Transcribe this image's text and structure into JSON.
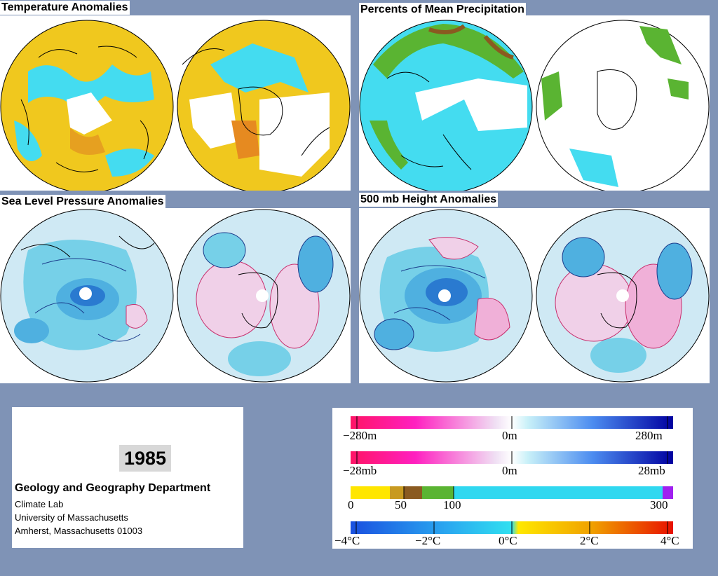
{
  "panels": {
    "temperature": {
      "title": "Temperature Anomalies"
    },
    "precipitation": {
      "title": "Percents of Mean Precipitation"
    },
    "slp": {
      "title": "Sea Level Pressure Anomalies"
    },
    "height500": {
      "title": "500 mb Height Anomalies"
    }
  },
  "info": {
    "year": "1985",
    "department": "Geology and Geography Department",
    "lines": [
      "Climate Lab",
      "University of Massachusetts",
      "Amherst, Massachusetts 01003"
    ]
  },
  "legend": {
    "height": {
      "labels": [
        "−280m",
        "0m",
        "280m"
      ]
    },
    "pressure": {
      "labels": [
        "−28mb",
        "0m",
        "28mb"
      ]
    },
    "precip": {
      "labels": [
        "0",
        "50",
        "100",
        "300"
      ]
    },
    "temp": {
      "labels": [
        "−4°C",
        "−2°C",
        "0°C",
        "2°C",
        "4°C"
      ]
    }
  },
  "colors": {
    "background": "#7f93b6",
    "negative_height": "#1a1adc",
    "positive_height": "#ff1493",
    "dry": "#ffe600",
    "wet": "#1ec8f0",
    "very_wet": "#a020f0",
    "cold": "#1e64dc",
    "warm": "#e81e00"
  }
}
